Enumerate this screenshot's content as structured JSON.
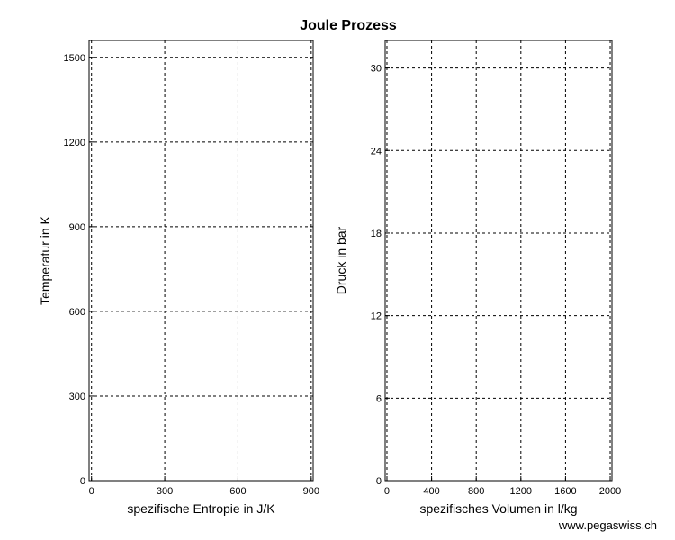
{
  "title": "Joule Prozess",
  "footer": "www.pegaswiss.ch",
  "chart_data": [
    {
      "type": "line",
      "xlabel": "spezifische Entropie in J/K",
      "ylabel": "Temperatur in K",
      "xlim": [
        -10,
        908
      ],
      "xticks": [
        0,
        300,
        600,
        900
      ],
      "ylim": [
        0,
        1560
      ],
      "yticks": [
        0,
        300,
        600,
        900,
        1200,
        1500
      ],
      "grid": true,
      "series": []
    },
    {
      "type": "line",
      "xlabel": "spezifisches Volumen in l/kg",
      "ylabel": "Druck in bar",
      "xlim": [
        -16,
        2016
      ],
      "xticks": [
        0,
        400,
        800,
        1200,
        1600,
        2000
      ],
      "ylim": [
        0,
        32
      ],
      "yticks": [
        0,
        6,
        12,
        18,
        24,
        30
      ],
      "grid": true,
      "series": []
    }
  ]
}
